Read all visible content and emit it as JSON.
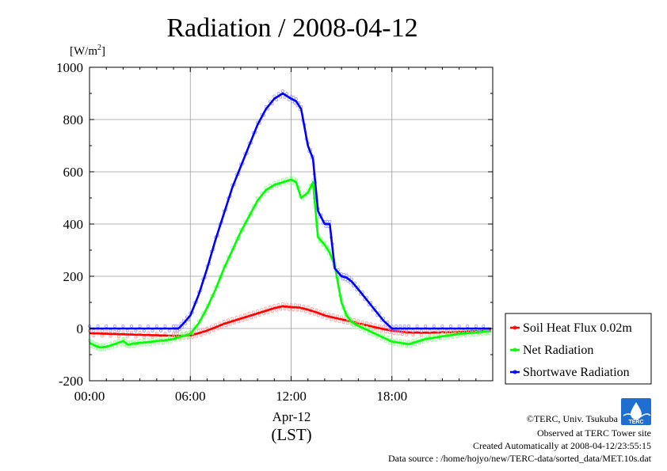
{
  "title": "Radiation / 2008-04-12",
  "credits": [
    "©TERC, Univ. Tsukuba",
    "Observed at TERC Tower site",
    "Created Automatically at 2008-04-12/23:55:15",
    "Data source : /home/hojyo/new/TERC-data/sorted_data/MET.10s.dat"
  ],
  "logo_text": "TERC",
  "chart_data": {
    "type": "line",
    "title": "Radiation / 2008-04-12",
    "ylabel_unit": "[W/m",
    "ylabel_unit_sup": "2",
    "ylabel_unit_end": "]",
    "xlabel_date": "Apr-12",
    "xlabel_tz": "(LST)",
    "xlim": [
      0,
      24
    ],
    "ylim": [
      -200,
      1000
    ],
    "xticks": [
      0,
      6,
      12,
      18
    ],
    "xtick_labels": [
      "00:00",
      "06:00",
      "12:00",
      "18:00"
    ],
    "yticks": [
      -200,
      0,
      200,
      400,
      600,
      800,
      1000
    ],
    "ytick_labels": [
      "-200",
      "0",
      "200",
      "400",
      "600",
      "800",
      "1000"
    ],
    "grid": true,
    "legend_position": "right, outside plot",
    "series": [
      {
        "name": "Soil Heat Flux 0.02m",
        "color": "#ff0000",
        "x": [
          0,
          1,
          2,
          3,
          4,
          5,
          5.5,
          6,
          6.5,
          7,
          7.5,
          8,
          8.5,
          9,
          9.5,
          10,
          10.5,
          11,
          11.5,
          12,
          12.5,
          13,
          13.5,
          14,
          14.5,
          15,
          15.5,
          16,
          16.5,
          17,
          17.5,
          18,
          18.5,
          19,
          20,
          21,
          22,
          23,
          23.9
        ],
        "y": [
          -18,
          -20,
          -22,
          -24,
          -26,
          -28,
          -28,
          -26,
          -18,
          -8,
          5,
          18,
          28,
          38,
          48,
          58,
          68,
          78,
          85,
          82,
          80,
          72,
          62,
          50,
          42,
          35,
          28,
          20,
          12,
          5,
          -2,
          -8,
          -12,
          -15,
          -16,
          -15,
          -13,
          -10,
          -8
        ]
      },
      {
        "name": "Net Radiation",
        "color": "#00ff00",
        "x": [
          0,
          0.3,
          0.6,
          1,
          1.5,
          2,
          2.3,
          2.6,
          3,
          3.5,
          4,
          4.5,
          5,
          5.5,
          6,
          6.5,
          7,
          7.5,
          8,
          8.5,
          9,
          9.5,
          10,
          10.5,
          11,
          11.5,
          12,
          12.3,
          12.6,
          13,
          13.3,
          13.6,
          14,
          14.3,
          14.6,
          15,
          15.3,
          15.6,
          16,
          16.5,
          17,
          17.5,
          18,
          18.5,
          19,
          19.5,
          20,
          20.5,
          21,
          21.5,
          22,
          22.5,
          23,
          23.5,
          23.9
        ],
        "y": [
          -55,
          -65,
          -72,
          -70,
          -60,
          -48,
          -62,
          -58,
          -55,
          -52,
          -48,
          -45,
          -40,
          -30,
          -20,
          20,
          80,
          150,
          230,
          300,
          370,
          430,
          490,
          530,
          550,
          560,
          570,
          560,
          500,
          520,
          560,
          350,
          320,
          290,
          240,
          100,
          50,
          25,
          10,
          -5,
          -20,
          -35,
          -50,
          -55,
          -60,
          -50,
          -40,
          -35,
          -30,
          -25,
          -20,
          -18,
          -15,
          -12,
          -10
        ]
      },
      {
        "name": "Shortwave Radiation",
        "color": "#0000ff",
        "x": [
          0,
          1,
          2,
          3,
          4,
          5,
          5.3,
          5.6,
          6,
          6.5,
          7,
          7.5,
          8,
          8.5,
          9,
          9.5,
          10,
          10.5,
          11,
          11.5,
          12,
          12.3,
          12.6,
          13,
          13.3,
          13.6,
          14,
          14.3,
          14.6,
          15,
          15.3,
          15.6,
          16,
          16.5,
          17,
          17.5,
          18,
          18.5,
          19,
          20,
          21,
          22,
          23,
          23.9
        ],
        "y": [
          0,
          0,
          0,
          0,
          0,
          0,
          0,
          20,
          50,
          130,
          230,
          340,
          440,
          540,
          620,
          700,
          780,
          840,
          880,
          900,
          880,
          870,
          840,
          700,
          650,
          450,
          400,
          400,
          230,
          200,
          195,
          180,
          150,
          110,
          70,
          30,
          0,
          0,
          0,
          0,
          0,
          0,
          0,
          0
        ]
      }
    ]
  }
}
